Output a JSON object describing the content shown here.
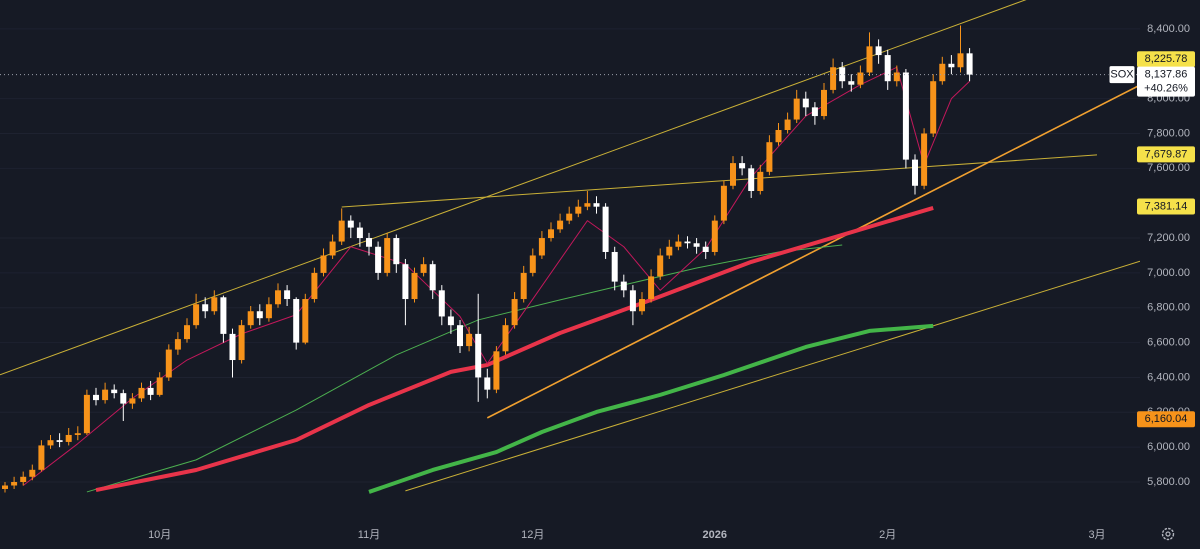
{
  "chart_data": {
    "type": "candlestick",
    "symbol": "SOX",
    "categories": [
      null,
      null,
      null,
      null,
      null,
      null,
      null,
      null,
      null,
      null,
      null,
      null,
      null,
      null,
      null,
      null,
      null,
      "10月",
      null,
      null,
      null,
      null,
      null,
      null,
      null,
      null,
      null,
      null,
      null,
      null,
      null,
      null,
      null,
      null,
      null,
      null,
      null,
      null,
      null,
      null,
      "11月",
      null,
      null,
      null,
      null,
      null,
      null,
      null,
      null,
      null,
      null,
      null,
      null,
      null,
      null,
      null,
      null,
      null,
      "12月",
      null,
      null,
      null,
      null,
      null,
      null,
      null,
      null,
      null,
      null,
      null,
      null,
      null,
      null,
      null,
      null,
      null,
      null,
      null,
      "2026",
      null,
      null,
      null,
      null,
      null,
      null,
      null,
      null,
      null,
      null,
      null,
      null,
      null,
      null,
      null,
      null,
      null,
      null,
      "2月",
      null,
      null,
      null,
      null,
      null,
      null,
      null,
      null,
      null,
      null,
      null,
      null,
      null,
      null,
      null,
      null,
      null,
      null,
      null,
      null,
      null,
      null,
      "3月"
    ],
    "open": [
      5760,
      5780,
      5800,
      5830,
      5870,
      6010,
      6040,
      6030,
      6070,
      6080,
      6300,
      6270,
      6330,
      6310,
      6250,
      6280,
      6340,
      6300,
      6400,
      6560,
      6620,
      6700,
      6820,
      6780,
      6860,
      6650,
      6500,
      6700,
      6780,
      6740,
      6820,
      6900,
      6850,
      6600,
      6850,
      7000,
      7100,
      7180,
      7300,
      7260,
      7200,
      7150,
      7000,
      7200,
      7050,
      6850,
      7000,
      7050,
      6900,
      6750,
      6700,
      6580,
      6650,
      6400,
      6330,
      6550,
      6700,
      6850,
      7000,
      7100,
      7200,
      7250,
      7300,
      7340,
      7380,
      7400,
      7380,
      7120,
      6950,
      6900,
      6780,
      6850,
      6980,
      7100,
      7150,
      7180,
      7170,
      7150,
      7120,
      7300,
      7500,
      7630,
      7600,
      7470,
      7580,
      7750,
      7820,
      7880,
      8000,
      7950,
      7900,
      8050,
      8180,
      8100,
      8080,
      8150,
      8300,
      8250,
      8100,
      8150,
      7650,
      7500,
      7800,
      8100,
      8200,
      8180,
      8260,
      null,
      null,
      null,
      null,
      null,
      null,
      null,
      null,
      null,
      null,
      null,
      null,
      null,
      null
    ],
    "high": [
      5800,
      5830,
      5860,
      5900,
      6040,
      6070,
      6080,
      6110,
      6120,
      6330,
      6340,
      6370,
      6360,
      6330,
      6310,
      6370,
      6380,
      6430,
      6590,
      6660,
      6740,
      6880,
      6860,
      6900,
      6870,
      6680,
      6730,
      6810,
      6820,
      6860,
      6940,
      6930,
      6860,
      6880,
      7030,
      7140,
      7220,
      7370,
      7330,
      7290,
      7230,
      7180,
      7230,
      7220,
      7080,
      7030,
      7090,
      7070,
      6930,
      6790,
      6730,
      6690,
      6880,
      6450,
      6580,
      6740,
      6890,
      7040,
      7140,
      7240,
      7290,
      7340,
      7380,
      7420,
      7470,
      7440,
      7400,
      7150,
      6990,
      6930,
      6890,
      7020,
      7140,
      7190,
      7220,
      7210,
      7200,
      7180,
      7330,
      7530,
      7670,
      7670,
      7620,
      7620,
      7790,
      7860,
      7920,
      8050,
      8040,
      7980,
      8090,
      8230,
      8210,
      8140,
      8190,
      8380,
      8340,
      8280,
      8190,
      8170,
      7680,
      7830,
      8140,
      8240,
      8250,
      8420,
      8290,
      null,
      null,
      null,
      null,
      null,
      null,
      null,
      null,
      null,
      null,
      null,
      null,
      null,
      null
    ],
    "low": [
      5740,
      5760,
      5780,
      5810,
      5860,
      5990,
      6000,
      6010,
      6040,
      6070,
      6240,
      6250,
      6280,
      6150,
      6220,
      6260,
      6270,
      6290,
      6380,
      6530,
      6600,
      6680,
      6740,
      6760,
      6600,
      6400,
      6480,
      6680,
      6700,
      6720,
      6800,
      6810,
      6560,
      6590,
      6830,
      6980,
      7080,
      7160,
      7200,
      7150,
      7100,
      6960,
      6980,
      7000,
      6700,
      6830,
      6980,
      6850,
      6700,
      6650,
      6540,
      6550,
      6260,
      6280,
      6310,
      6530,
      6680,
      6830,
      6980,
      7080,
      7180,
      7230,
      7280,
      7320,
      7360,
      7340,
      7080,
      6900,
      6860,
      6700,
      6760,
      6830,
      6960,
      7080,
      7130,
      7140,
      7110,
      7080,
      7100,
      7280,
      7480,
      7560,
      7430,
      7450,
      7560,
      7730,
      7800,
      7860,
      7900,
      7850,
      7880,
      8030,
      8060,
      8040,
      8060,
      8130,
      8200,
      8050,
      8070,
      7600,
      7450,
      7480,
      7780,
      8080,
      8140,
      8150,
      8100,
      null,
      null,
      null,
      null,
      null,
      null,
      null,
      null,
      null,
      null,
      null,
      null,
      null,
      null
    ],
    "close": [
      5780,
      5800,
      5830,
      5870,
      6010,
      6040,
      6030,
      6070,
      6080,
      6300,
      6270,
      6330,
      6310,
      6250,
      6280,
      6340,
      6300,
      6400,
      6560,
      6620,
      6700,
      6820,
      6780,
      6860,
      6650,
      6500,
      6700,
      6780,
      6740,
      6820,
      6900,
      6850,
      6600,
      6850,
      7000,
      7100,
      7180,
      7300,
      7260,
      7200,
      7150,
      7000,
      7200,
      7050,
      6850,
      7000,
      7050,
      6900,
      6750,
      6700,
      6580,
      6650,
      6400,
      6330,
      6550,
      6700,
      6850,
      7000,
      7100,
      7200,
      7250,
      7300,
      7340,
      7380,
      7400,
      7380,
      7120,
      6950,
      6900,
      6780,
      6850,
      6980,
      7100,
      7150,
      7180,
      7170,
      7150,
      7120,
      7300,
      7500,
      7630,
      7600,
      7470,
      7580,
      7750,
      7820,
      7880,
      8000,
      7950,
      7900,
      8050,
      8180,
      8100,
      8080,
      8150,
      8300,
      8250,
      8100,
      8150,
      7650,
      7500,
      7800,
      8100,
      8200,
      8180,
      8260,
      8137.86,
      null,
      null,
      null,
      null,
      null,
      null,
      null,
      null,
      null,
      null,
      null,
      null,
      null,
      null
    ],
    "up_color": "#f7931a",
    "down_color": "#ffffff",
    "ylim": [
      5582,
      8566
    ],
    "yticks": [
      {
        "value": 5800,
        "label": "5,800.00"
      },
      {
        "value": 6000,
        "label": "6,000.00"
      },
      {
        "value": 6200,
        "label": "6,200.00"
      },
      {
        "value": 6400,
        "label": "6,400.00"
      },
      {
        "value": 6600,
        "label": "6,600.00"
      },
      {
        "value": 6800,
        "label": "6,800.00"
      },
      {
        "value": 7000,
        "label": "7,000.00"
      },
      {
        "value": 7200,
        "label": "7,200.00"
      },
      {
        "value": 7600,
        "label": "7,600.00"
      },
      {
        "value": 7800,
        "label": "7,800.00"
      },
      {
        "value": 8000,
        "label": "8,000.00"
      },
      {
        "value": 8400,
        "label": "8,400.00"
      }
    ],
    "overlays": [
      {
        "color": "#4caf50",
        "width": 1,
        "x": [
          9,
          21,
          32,
          43,
          52,
          61,
          68,
          76,
          85,
          92
        ],
        "values": [
          5743,
          5927,
          6213,
          6529,
          6730,
          6845,
          6931,
          7028,
          7120,
          7160
        ]
      },
      {
        "color": "#e8344a",
        "width": 4,
        "x": [
          10,
          21,
          32,
          40,
          49,
          53,
          61,
          71,
          82,
          92,
          102
        ],
        "values": [
          5754,
          5869,
          6041,
          6242,
          6432,
          6472,
          6655,
          6845,
          7063,
          7218,
          7373
        ]
      },
      {
        "color": "#43b548",
        "width": 4,
        "x": [
          40,
          47,
          54,
          59,
          65,
          72,
          79,
          88,
          95,
          102
        ],
        "values": [
          5743,
          5869,
          5972,
          6087,
          6202,
          6300,
          6414,
          6575,
          6667,
          6696
        ]
      },
      {
        "color": "#c2185b",
        "width": 1,
        "x": [
          2,
          8,
          14,
          20,
          26,
          32,
          38,
          44,
          50,
          53,
          58,
          64,
          68,
          72,
          77,
          82,
          88,
          94,
          98,
          101,
          104,
          106
        ],
        "values": [
          5780,
          6020,
          6280,
          6500,
          6650,
          6760,
          7150,
          7050,
          6750,
          6480,
          6850,
          7300,
          7150,
          6900,
          7140,
          7550,
          7900,
          8080,
          8180,
          7620,
          8000,
          8100
        ]
      }
    ],
    "trend_lines": [
      {
        "color": "#c9b037",
        "x": [
          0,
          111
        ],
        "values": [
          6426,
          8545
        ],
        "extend": "both"
      },
      {
        "color": "#c9b037",
        "x": [
          37,
          120
        ],
        "values": [
          7378,
          7677
        ],
        "extend": "none"
      },
      {
        "color": "#c9b037",
        "x": [
          44,
          120
        ],
        "values": [
          5749,
          6990
        ],
        "extend": "right"
      },
      {
        "color": "#f0a030",
        "x": [
          53,
          120
        ],
        "values": [
          6168,
          7952
        ],
        "extend": "right"
      }
    ],
    "price_labels": [
      {
        "value": 8225.78,
        "label": "8,225.78",
        "color": "#f5e14a"
      },
      {
        "value": 7679.87,
        "label": "7,679.87",
        "color": "#f5e14a"
      },
      {
        "value": 7381.14,
        "label": "7,381.14",
        "color": "#f5e14a"
      },
      {
        "value": 6160.04,
        "label": "6,160.04",
        "color": "#f7931a"
      }
    ],
    "last_price": {
      "value": 8137.86,
      "label": "8,137.86"
    },
    "change": {
      "value": 40.26,
      "label": "+40.26%"
    }
  }
}
